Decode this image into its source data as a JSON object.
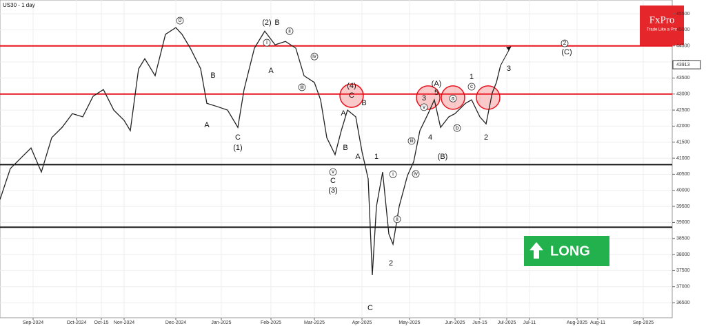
{
  "title": "US30 - 1 day",
  "brand": {
    "name": "FxPro",
    "tagline": "Trade Like a Pro"
  },
  "signal": "LONG",
  "chart_data": {
    "type": "line",
    "x": [
      0,
      5,
      10,
      15,
      20,
      25,
      30,
      35,
      40,
      45,
      50,
      55,
      60,
      63,
      67,
      70,
      75,
      80,
      85,
      88,
      92,
      97,
      100,
      105,
      110,
      115,
      118,
      123,
      128,
      133,
      138,
      143,
      147,
      152,
      155,
      158,
      162,
      165,
      168,
      172,
      175,
      178,
      180,
      182,
      185,
      188,
      190,
      193,
      197,
      200,
      203,
      207,
      210,
      213,
      217,
      220,
      225,
      228,
      232,
      235,
      238,
      240,
      242
    ],
    "series": [
      {
        "name": "US30",
        "color": "#222222",
        "values": [
          39714,
          40678,
          41000,
          41320,
          40570,
          41640,
          41960,
          42390,
          42290,
          42930,
          43140,
          42500,
          42180,
          41860,
          43785,
          44100,
          43570,
          44860,
          45070,
          44860,
          44430,
          43790,
          42710,
          42610,
          42500,
          41960,
          43140,
          44430,
          44960,
          44535,
          44640,
          44430,
          43570,
          43360,
          42820,
          41640,
          41110,
          41860,
          42500,
          42290,
          41210,
          40360,
          37360,
          39500,
          40570,
          38640,
          38320,
          39500,
          40460,
          40890,
          41860,
          42390,
          42820,
          41960,
          42290,
          42390,
          42710,
          42820,
          42290,
          42070,
          43040,
          43360,
          43890
        ]
      }
    ],
    "last_price": 43913,
    "levels": [
      {
        "value": 44500,
        "color": "#e8101a"
      },
      {
        "value": 43000,
        "color": "#e8101a"
      },
      {
        "value": 40800,
        "color": "#111111"
      },
      {
        "value": 38850,
        "color": "#111111"
      }
    ],
    "highlights": [
      {
        "x": 170,
        "y": 42950
      },
      {
        "x": 207,
        "y": 42890
      },
      {
        "x": 219,
        "y": 42890
      },
      {
        "x": 236,
        "y": 42890
      }
    ],
    "projection": {
      "x": [
        242,
        247
      ],
      "y": [
        43890,
        44480
      ]
    },
    "annotations": [
      {
        "text": "0",
        "x": 87,
        "y": 45286,
        "circled": true
      },
      {
        "text": "(2)",
        "x": 129,
        "y": 45221
      },
      {
        "text": "B",
        "x": 134,
        "y": 45221
      },
      {
        "text": "A",
        "x": 131,
        "y": 43720
      },
      {
        "text": "i",
        "x": 129,
        "y": 44600,
        "circled": true
      },
      {
        "text": "ii",
        "x": 140,
        "y": 44960,
        "circled": true
      },
      {
        "text": "iii",
        "x": 146,
        "y": 43210,
        "circled": true
      },
      {
        "text": "iv",
        "x": 152,
        "y": 44170,
        "circled": true
      },
      {
        "text": "v",
        "x": 161,
        "y": 40570,
        "circled": true
      },
      {
        "text": "A",
        "x": 100,
        "y": 42030
      },
      {
        "text": "B",
        "x": 103,
        "y": 43570
      },
      {
        "text": "C",
        "x": 115,
        "y": 41640
      },
      {
        "text": "(1)",
        "x": 115,
        "y": 41320
      },
      {
        "text": "(4)",
        "x": 170,
        "y": 43250
      },
      {
        "text": "C",
        "x": 170,
        "y": 42950
      },
      {
        "text": "B",
        "x": 176,
        "y": 42710
      },
      {
        "text": "A",
        "x": 166,
        "y": 42390
      },
      {
        "text": "B",
        "x": 167,
        "y": 41320
      },
      {
        "text": "A",
        "x": 173,
        "y": 41040
      },
      {
        "text": "C",
        "x": 161,
        "y": 40290
      },
      {
        "text": "(3)",
        "x": 161,
        "y": 39990
      },
      {
        "text": "1",
        "x": 182,
        "y": 41040
      },
      {
        "text": "2",
        "x": 189,
        "y": 37720
      },
      {
        "text": "C",
        "x": 179,
        "y": 36330
      },
      {
        "text": "i",
        "x": 190,
        "y": 40500,
        "circled": true
      },
      {
        "text": "ii",
        "x": 192,
        "y": 39100,
        "circled": true
      },
      {
        "text": "iii",
        "x": 199,
        "y": 41540,
        "circled": true
      },
      {
        "text": "iv",
        "x": 201,
        "y": 40510,
        "circled": true
      },
      {
        "text": "v",
        "x": 205,
        "y": 42590,
        "circled": true
      },
      {
        "text": "3",
        "x": 205,
        "y": 42860
      },
      {
        "text": "(A)",
        "x": 211,
        "y": 43310
      },
      {
        "text": "5",
        "x": 211,
        "y": 43040
      },
      {
        "text": "4",
        "x": 208,
        "y": 41640
      },
      {
        "text": "(B)",
        "x": 214,
        "y": 41040
      },
      {
        "text": "a",
        "x": 219,
        "y": 42860,
        "circled": true
      },
      {
        "text": "b",
        "x": 221,
        "y": 41940,
        "circled": true
      },
      {
        "text": "c",
        "x": 228,
        "y": 43230,
        "circled": true
      },
      {
        "text": "1",
        "x": 228,
        "y": 43530
      },
      {
        "text": "2",
        "x": 235,
        "y": 41640
      },
      {
        "text": "3",
        "x": 246,
        "y": 43790
      },
      {
        "text": "2",
        "x": 273,
        "y": 44580,
        "circled": true
      },
      {
        "text": "(C)",
        "x": 274,
        "y": 44300
      }
    ],
    "xlim": [
      0,
      325
    ],
    "xticks": [
      {
        "value": 16,
        "label": "Sep-2024"
      },
      {
        "value": 37,
        "label": "Oct-2024"
      },
      {
        "value": 49,
        "label": "Oct-15"
      },
      {
        "value": 60,
        "label": "Nov-2024"
      },
      {
        "value": 85,
        "label": "Dec-2024"
      },
      {
        "value": 107,
        "label": "Jan-2025"
      },
      {
        "value": 131,
        "label": "Feb-2025"
      },
      {
        "value": 152,
        "label": "Mar-2025"
      },
      {
        "value": 175,
        "label": "Apr-2025"
      },
      {
        "value": 198,
        "label": "May-2025"
      },
      {
        "value": 220,
        "label": "Jun-2025"
      },
      {
        "value": 232,
        "label": "Jun-15"
      },
      {
        "value": 245,
        "label": "Jul-2025"
      },
      {
        "value": 256,
        "label": "Jul-11"
      },
      {
        "value": 279,
        "label": "Aug-2025"
      },
      {
        "value": 289,
        "label": "Aug-11"
      },
      {
        "value": 311,
        "label": "Sep-2025"
      }
    ],
    "ylim": [
      36030,
      45930
    ],
    "yticks": [
      36500,
      37000,
      37500,
      38000,
      38500,
      39000,
      39500,
      40000,
      40500,
      41000,
      41500,
      42000,
      42500,
      43000,
      43500,
      44000,
      44500,
      45000,
      45500
    ],
    "grid": true
  }
}
